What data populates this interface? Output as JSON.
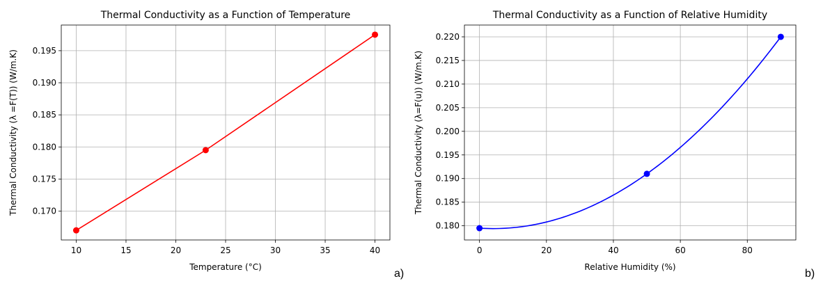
{
  "chart_data": [
    {
      "type": "line",
      "panel": "a)",
      "title": "Thermal Conductivity as a Function of Temperature",
      "xlabel": "Temperature (°C)",
      "ylabel": "Thermal Conductivity (λ =F(T)) (W/m.K)",
      "xlim": [
        8.5,
        41.5
      ],
      "ylim": [
        0.1655,
        0.199
      ],
      "xticks": [
        10,
        15,
        20,
        25,
        30,
        35,
        40
      ],
      "xtick_labels": [
        "10",
        "15",
        "20",
        "25",
        "30",
        "35",
        "40"
      ],
      "yticks": [
        0.17,
        0.175,
        0.18,
        0.185,
        0.19,
        0.195
      ],
      "ytick_labels": [
        "0.170",
        "0.175",
        "0.180",
        "0.185",
        "0.190",
        "0.195"
      ],
      "grid": true,
      "color": "#ff0000",
      "series": [
        {
          "x": [
            10,
            23,
            40
          ],
          "y": [
            0.167,
            0.1795,
            0.1975
          ]
        }
      ]
    },
    {
      "type": "line",
      "panel": "b)",
      "title": "Thermal Conductivity as a Function of Relative Humidity",
      "xlabel": "Relative Humidity (%)",
      "ylabel": "Thermal Conductivity (λ=F(u)) (W/m.K)",
      "xlim": [
        -4.5,
        94.5
      ],
      "ylim": [
        0.177,
        0.2225
      ],
      "xticks": [
        0,
        20,
        40,
        60,
        80
      ],
      "xtick_labels": [
        "0",
        "20",
        "40",
        "60",
        "80"
      ],
      "yticks": [
        0.18,
        0.185,
        0.19,
        0.195,
        0.2,
        0.205,
        0.21,
        0.215,
        0.22
      ],
      "ytick_labels": [
        "0.180",
        "0.185",
        "0.190",
        "0.195",
        "0.200",
        "0.205",
        "0.210",
        "0.215",
        "0.220"
      ],
      "grid": true,
      "color": "#0000ff",
      "series": [
        {
          "x": [
            0,
            50,
            90
          ],
          "y": [
            0.1795,
            0.191,
            0.22
          ]
        }
      ]
    }
  ]
}
